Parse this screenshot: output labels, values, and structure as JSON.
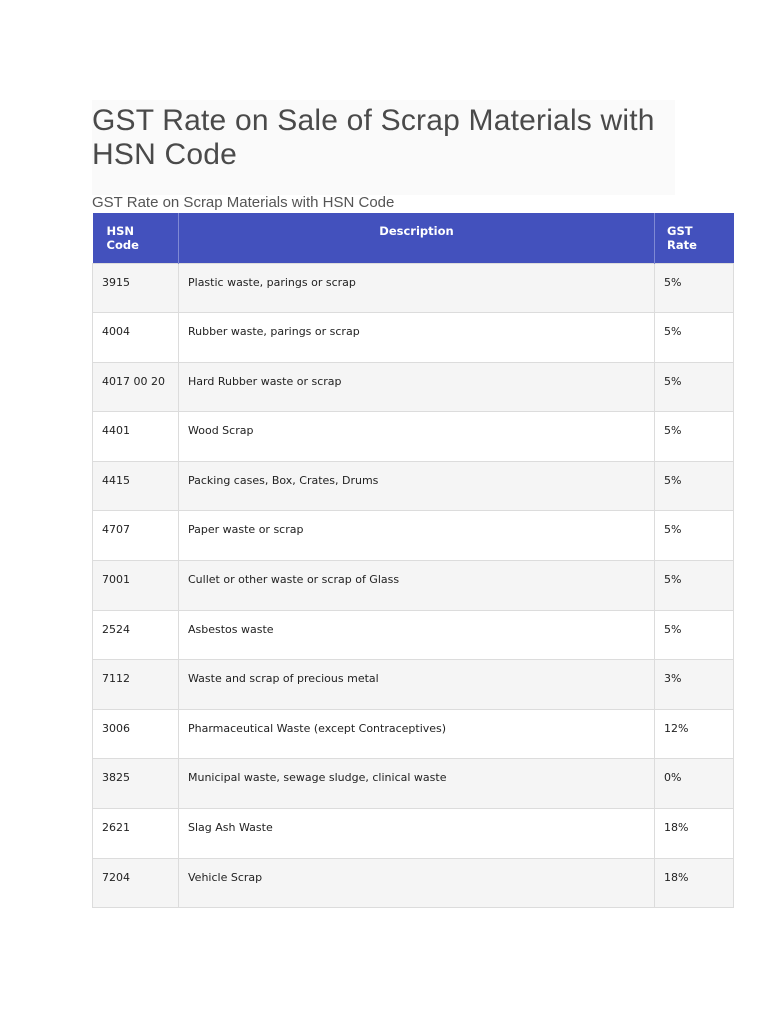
{
  "page": {
    "title": "GST Rate on Sale of Scrap Materials with HSN Code",
    "caption": "GST Rate on Scrap Materials with HSN Code"
  },
  "table": {
    "headers": {
      "hsn": "HSN Code",
      "description": "Description",
      "rate": "GST Rate"
    },
    "rows": [
      {
        "hsn": "3915",
        "description": "Plastic waste, parings or scrap",
        "rate": "5%"
      },
      {
        "hsn": "4004",
        "description": "Rubber waste, parings or scrap",
        "rate": "5%"
      },
      {
        "hsn": "4017 00 20",
        "description": "Hard Rubber waste or scrap",
        "rate": "5%"
      },
      {
        "hsn": "4401",
        "description": "Wood Scrap",
        "rate": "5%"
      },
      {
        "hsn": "4415",
        "description": "Packing cases, Box, Crates, Drums",
        "rate": "5%"
      },
      {
        "hsn": "4707",
        "description": "Paper waste or scrap",
        "rate": "5%"
      },
      {
        "hsn": "7001",
        "description": "Cullet or other waste or scrap of Glass",
        "rate": "5%"
      },
      {
        "hsn": "2524",
        "description": "Asbestos waste",
        "rate": "5%"
      },
      {
        "hsn": "7112",
        "description": "Waste and scrap of precious metal",
        "rate": "3%"
      },
      {
        "hsn": "3006",
        "description": "Pharmaceutical Waste (except Contraceptives)",
        "rate": "12%"
      },
      {
        "hsn": "3825",
        "description": "Municipal waste, sewage sludge, clinical waste",
        "rate": "0%"
      },
      {
        "hsn": "2621",
        "description": "Slag Ash Waste",
        "rate": "18%"
      },
      {
        "hsn": "7204",
        "description": "Vehicle Scrap",
        "rate": "18%"
      }
    ]
  },
  "colors": {
    "header_bg": "#4351bd",
    "header_text": "#ffffff",
    "row_alt_bg": "#f5f5f5",
    "border": "#dcdcdc"
  }
}
